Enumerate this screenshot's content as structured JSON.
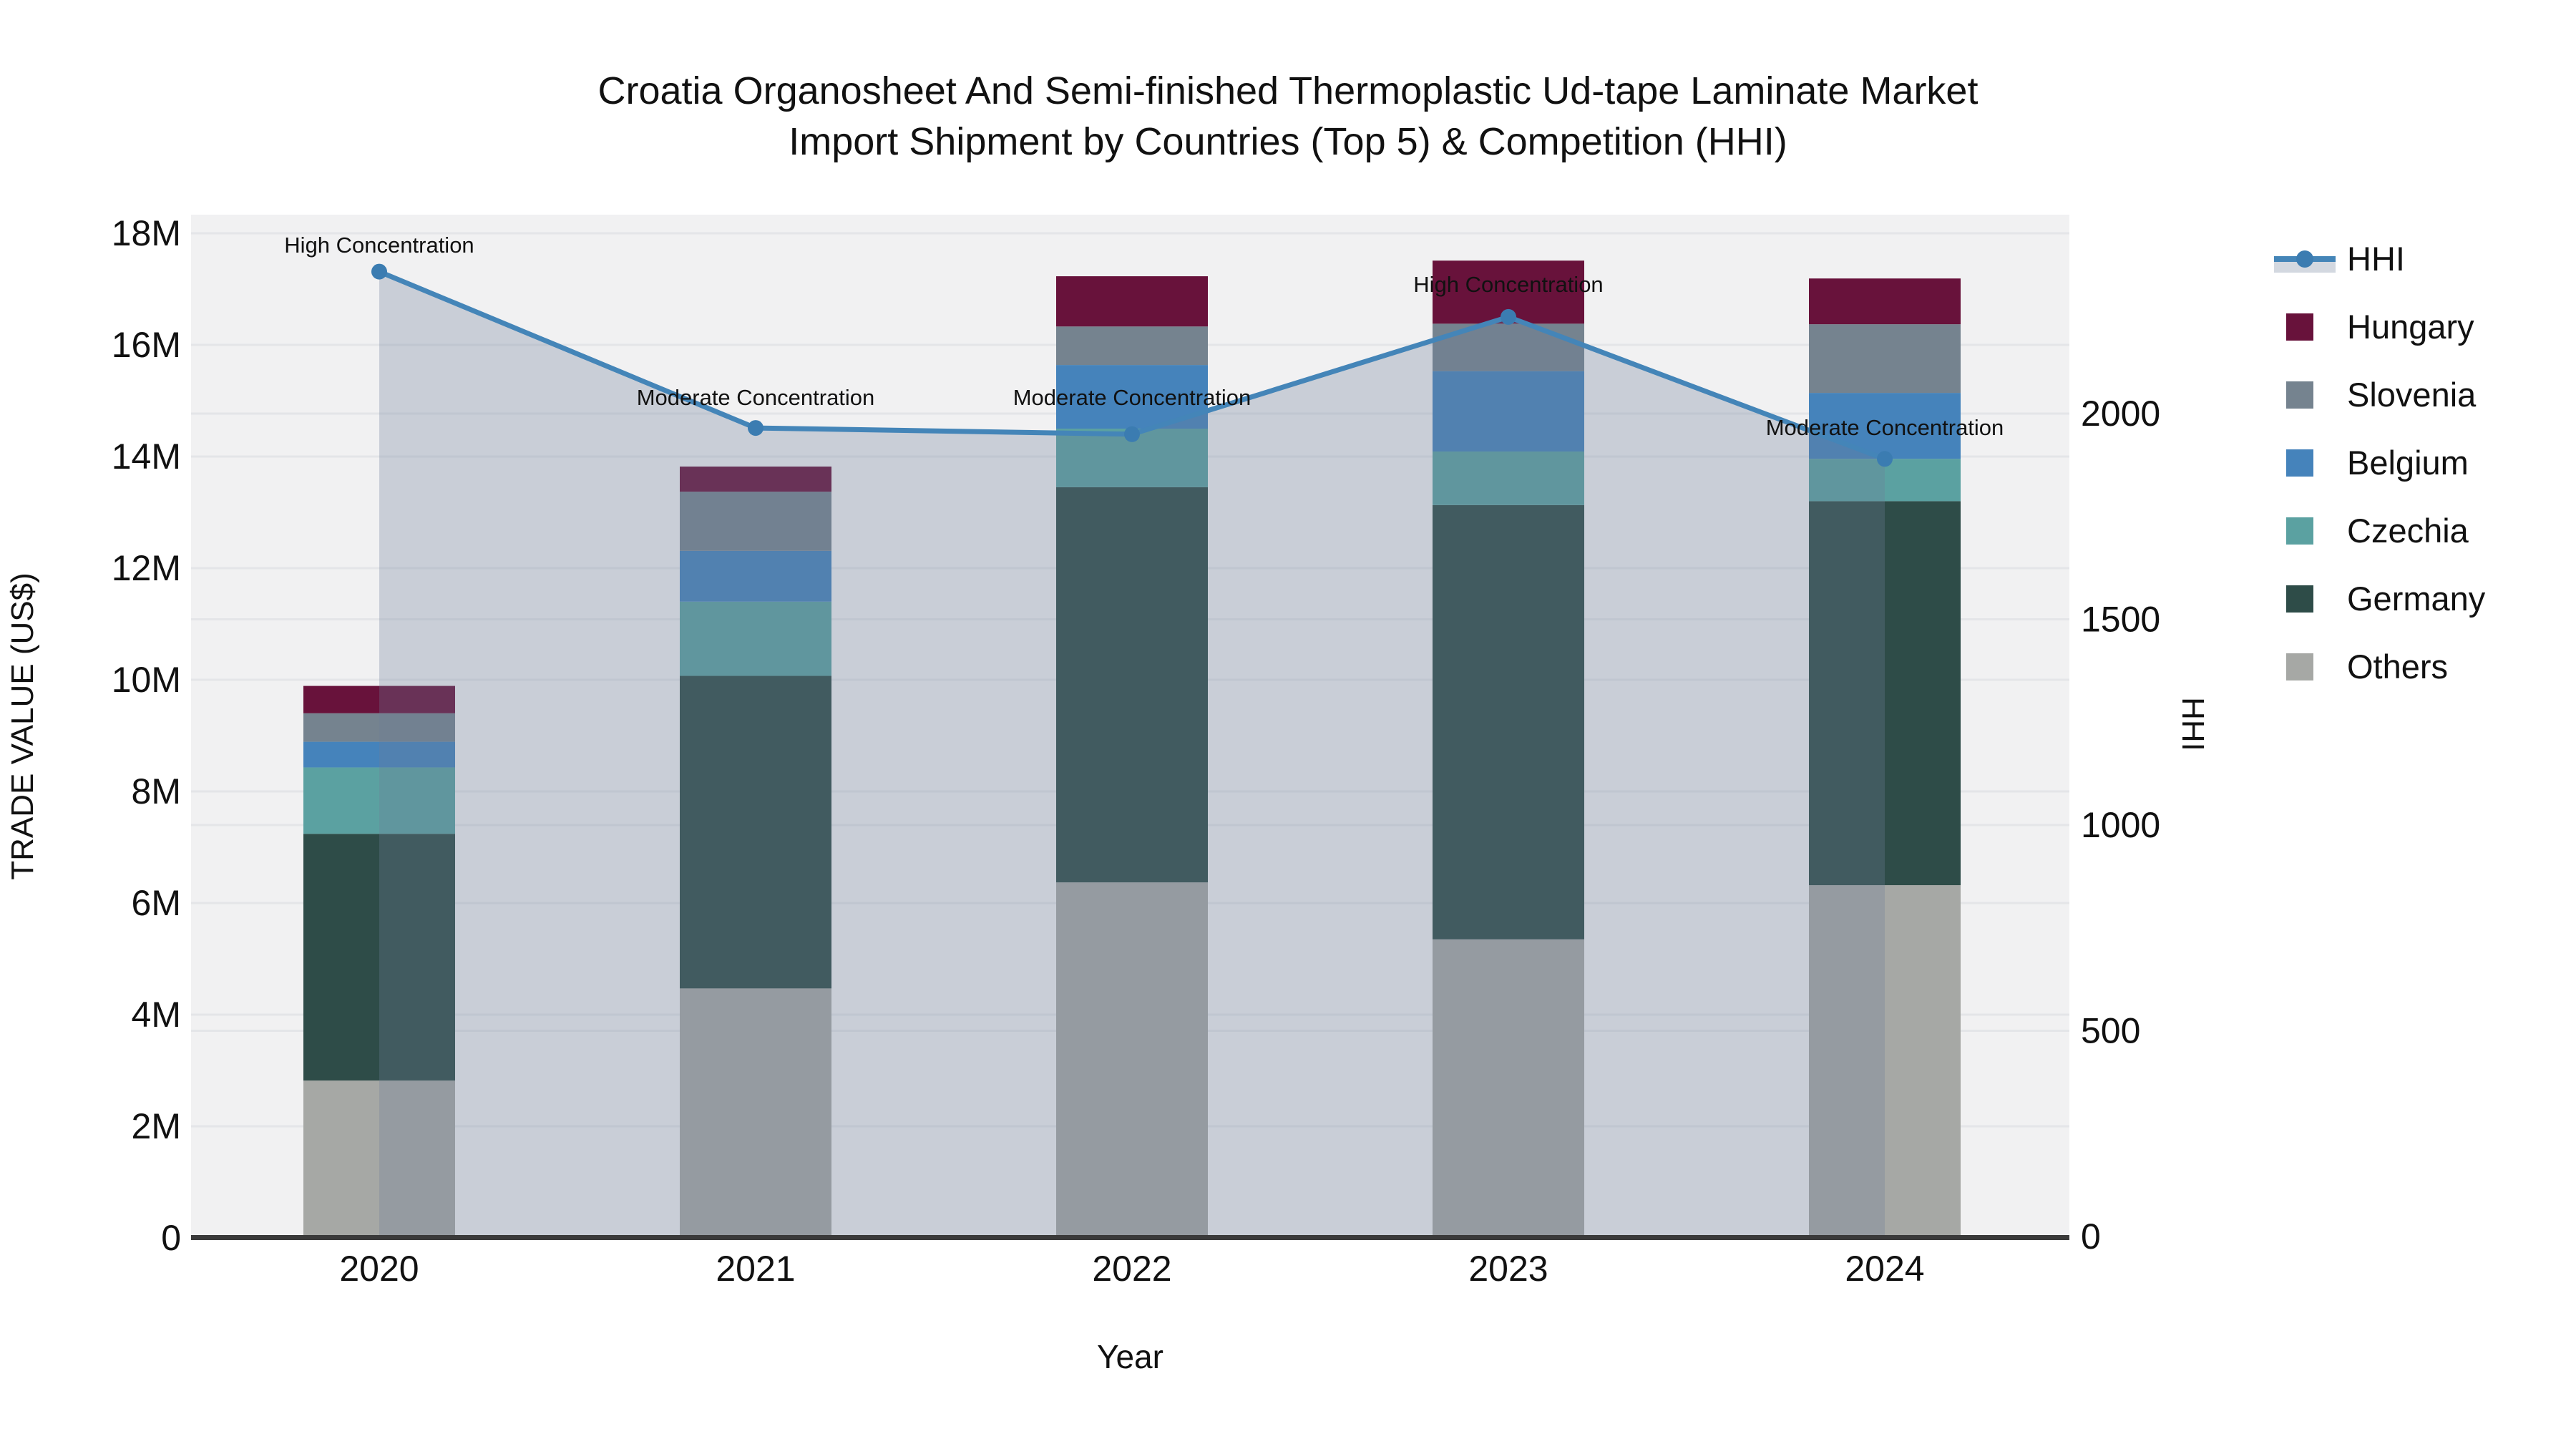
{
  "title": {
    "line1": "Croatia Organosheet And Semi-finished Thermoplastic Ud-tape Laminate Market",
    "line2": "Import Shipment by Countries (Top 5) & Competition (HHI)"
  },
  "colors": {
    "plot_bg": "#f1f1f2",
    "gridline": "#e4e5e8",
    "axis_line": "#3a3a3a",
    "hhi_line": "#4485b8",
    "hhi_marker": "#3b7cb1",
    "hhi_fill": "rgba(110,127,153,0.30)",
    "hhi_fill_legend": "#d3d8e0",
    "hungary": "#68123b",
    "slovenia": "#75838f",
    "belgium": "#4583bb",
    "czechia": "#5ba1a1",
    "germany": "#2e4c48",
    "others": "#a6a8a5"
  },
  "legend": {
    "items": [
      {
        "label": "HHI",
        "type": "line",
        "color": "#4485b8"
      },
      {
        "label": "Hungary",
        "type": "swatch",
        "color": "#68123b"
      },
      {
        "label": "Slovenia",
        "type": "swatch",
        "color": "#75838f"
      },
      {
        "label": "Belgium",
        "type": "swatch",
        "color": "#4583bb"
      },
      {
        "label": "Czechia",
        "type": "swatch",
        "color": "#5ba1a1"
      },
      {
        "label": "Germany",
        "type": "swatch",
        "color": "#2e4c48"
      },
      {
        "label": "Others",
        "type": "swatch",
        "color": "#a6a8a5"
      }
    ]
  },
  "chart_data": {
    "type": "combo-stacked-bar-line",
    "x_title": "Year",
    "categories": [
      "2020",
      "2021",
      "2022",
      "2023",
      "2024"
    ],
    "stack_order_bottom_to_top": [
      "Others",
      "Germany",
      "Czechia",
      "Belgium",
      "Slovenia",
      "Hungary"
    ],
    "series": [
      {
        "name": "Others",
        "color": "#a6a8a5",
        "values_musd": [
          2.82,
          4.47,
          6.37,
          5.35,
          6.32
        ]
      },
      {
        "name": "Germany",
        "color": "#2e4c48",
        "values_musd": [
          4.42,
          5.6,
          7.08,
          7.78,
          6.88
        ]
      },
      {
        "name": "Czechia",
        "color": "#5ba1a1",
        "values_musd": [
          1.19,
          1.33,
          1.05,
          0.96,
          0.76
        ]
      },
      {
        "name": "Belgium",
        "color": "#4583bb",
        "values_musd": [
          0.46,
          0.91,
          1.14,
          1.44,
          1.18
        ]
      },
      {
        "name": "Slovenia",
        "color": "#75838f",
        "values_musd": [
          0.51,
          1.06,
          0.69,
          0.85,
          1.23
        ]
      },
      {
        "name": "Hungary",
        "color": "#68123b",
        "values_musd": [
          0.49,
          0.45,
          0.9,
          1.13,
          0.82
        ]
      }
    ],
    "totals_musd": [
      9.89,
      13.82,
      17.23,
      17.51,
      17.19
    ],
    "hhi": {
      "name": "HHI",
      "values": [
        2345,
        1965,
        1950,
        2235,
        1890
      ],
      "style": "line with circle markers over translucent area fill to zero"
    },
    "annotations": [
      {
        "year": "2020",
        "text": "High Concentration"
      },
      {
        "year": "2021",
        "text": "Moderate Concentration"
      },
      {
        "year": "2022",
        "text": "Moderate Concentration"
      },
      {
        "year": "2023",
        "text": "High Concentration"
      },
      {
        "year": "2024",
        "text": "Moderate Concentration"
      }
    ],
    "y_left": {
      "title": "TRADE VALUE (US$)",
      "unit": "M US$",
      "min": 0,
      "max": 18,
      "tick_values": [
        0,
        2,
        4,
        6,
        8,
        10,
        12,
        14,
        16,
        18
      ],
      "tick_labels": [
        "0",
        "2M",
        "4M",
        "6M",
        "8M",
        "10M",
        "12M",
        "14M",
        "16M",
        "18M"
      ]
    },
    "y_right": {
      "title": "HHI",
      "min": 0,
      "tick_values": [
        0,
        500,
        1000,
        1500,
        2000
      ],
      "tick_labels": [
        "0",
        "500",
        "1000",
        "1500",
        "2000"
      ]
    },
    "grid": true,
    "legend_position": "right"
  }
}
